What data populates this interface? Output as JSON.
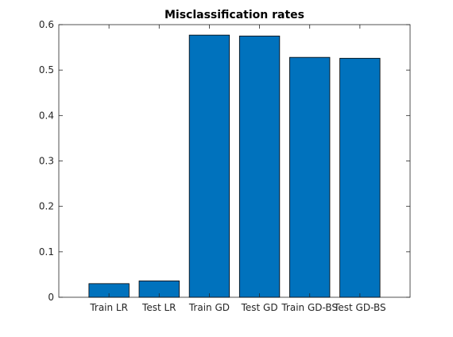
{
  "chart_data": {
    "type": "bar",
    "title": "Misclassification rates",
    "xlabel": "",
    "ylabel": "",
    "categories": [
      "Train LR",
      "Test LR",
      "Train GD",
      "Test GD",
      "Train GD-BS",
      "Test GD-BS"
    ],
    "values": [
      0.03,
      0.036,
      0.577,
      0.575,
      0.528,
      0.526
    ],
    "ylim": [
      0,
      0.6
    ],
    "yticks": [
      0,
      0.1,
      0.2,
      0.3,
      0.4,
      0.5,
      0.6
    ],
    "ytick_labels": [
      "0",
      "0.1",
      "0.2",
      "0.3",
      "0.4",
      "0.5",
      "0.6"
    ],
    "grid": false,
    "legend": "none",
    "colors": {
      "bar_fill": "#0072BD",
      "bar_stroke": "#000000",
      "axis": "#262626"
    }
  }
}
